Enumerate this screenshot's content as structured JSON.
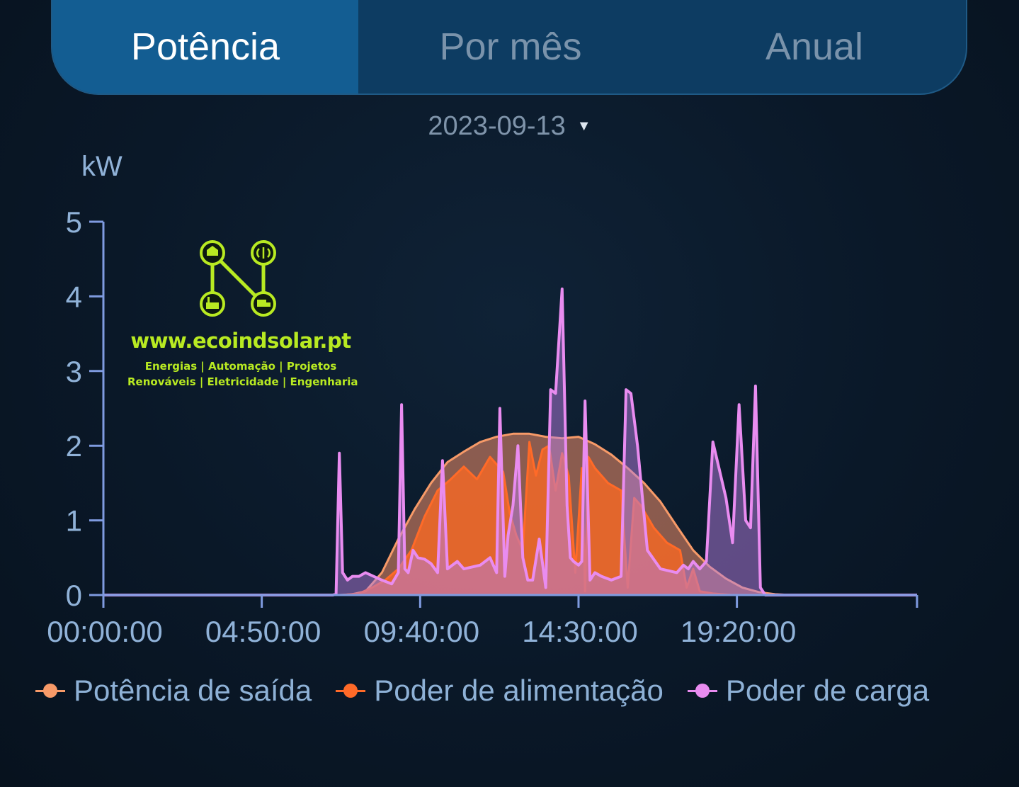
{
  "tabs": [
    {
      "label": "Potência",
      "active": true
    },
    {
      "label": "Por mês",
      "active": false
    },
    {
      "label": "Anual",
      "active": false
    }
  ],
  "date_picker": {
    "value": "2023-09-13"
  },
  "watermark": {
    "url": "www.ecoindsolar.pt",
    "line1": "Energias  |  Automação  |  Projetos",
    "line2": "Renováveis  |  Eletricidade  |  Engenharia"
  },
  "colors": {
    "axis": "#7f9be0",
    "tick_label": "#90b2d8",
    "output": "#f79a68",
    "feed": "#ff6a28",
    "load": "#e98cf0"
  },
  "chart_data": {
    "type": "area",
    "ylabel": "kW",
    "ylim": [
      0,
      5
    ],
    "yticks": [
      0,
      1,
      2,
      3,
      4,
      5
    ],
    "x_unit": "hours since 00:00",
    "xlim": [
      0,
      24.83
    ],
    "xticks": [
      {
        "value": 0,
        "label": "00:00:00"
      },
      {
        "value": 4.833,
        "label": "04:50:00"
      },
      {
        "value": 9.667,
        "label": "09:40:00"
      },
      {
        "value": 14.5,
        "label": "14:30:00"
      },
      {
        "value": 19.333,
        "label": "19:20:00"
      }
    ],
    "legend_position": "bottom",
    "grid": false,
    "series": [
      {
        "name": "Potência de saída",
        "x": [
          0,
          7.2,
          7.6,
          8.0,
          8.5,
          9.0,
          9.5,
          10.0,
          10.5,
          11.0,
          11.5,
          12.0,
          12.5,
          13.0,
          13.5,
          14.0,
          14.5,
          15.0,
          15.5,
          16.0,
          16.5,
          17.0,
          17.5,
          18.0,
          18.5,
          19.0,
          19.5,
          20.0,
          20.5,
          21.0,
          24.83
        ],
        "values": [
          0,
          0,
          0.01,
          0.05,
          0.3,
          0.75,
          1.15,
          1.5,
          1.78,
          1.92,
          2.05,
          2.12,
          2.16,
          2.16,
          2.12,
          2.1,
          2.12,
          2.02,
          1.88,
          1.7,
          1.5,
          1.25,
          0.92,
          0.6,
          0.38,
          0.22,
          0.1,
          0.04,
          0.01,
          0,
          0
        ]
      },
      {
        "name": "Poder de alimentação",
        "x": [
          0,
          7.3,
          7.8,
          8.2,
          8.6,
          9.0,
          9.4,
          9.8,
          10.2,
          10.6,
          11.0,
          11.4,
          11.8,
          12.0,
          12.2,
          12.4,
          12.6,
          12.8,
          13.0,
          13.2,
          13.4,
          13.6,
          13.8,
          14.0,
          14.2,
          14.4,
          14.6,
          14.7,
          14.8,
          15.0,
          15.4,
          15.8,
          16.0,
          16.2,
          16.4,
          16.8,
          17.2,
          17.6,
          17.8,
          18.0,
          18.2,
          18.6,
          18.9,
          19.2,
          19.5,
          24.83
        ],
        "values": [
          0,
          0,
          0.02,
          0.1,
          0.2,
          0.35,
          0.6,
          1.05,
          1.4,
          1.55,
          1.72,
          1.55,
          1.85,
          1.75,
          1.65,
          1.1,
          0.8,
          0.6,
          2.05,
          1.6,
          1.95,
          2.0,
          1.4,
          1.9,
          1.6,
          0.3,
          1.7,
          0.05,
          1.85,
          1.7,
          1.5,
          1.4,
          0.1,
          1.3,
          1.2,
          0.9,
          0.7,
          0.6,
          0.1,
          0.35,
          0.05,
          0.02,
          0.01,
          0,
          0,
          0
        ]
      },
      {
        "name": "Poder de carga",
        "x": [
          0,
          7.0,
          7.1,
          7.2,
          7.3,
          7.45,
          7.6,
          7.8,
          8.0,
          8.5,
          8.8,
          9.0,
          9.1,
          9.2,
          9.3,
          9.45,
          9.6,
          9.8,
          10.0,
          10.2,
          10.35,
          10.5,
          10.65,
          10.8,
          11.0,
          11.5,
          11.8,
          12.0,
          12.1,
          12.25,
          12.35,
          12.5,
          12.65,
          12.8,
          12.95,
          13.1,
          13.3,
          13.5,
          13.65,
          13.8,
          14.0,
          14.15,
          14.25,
          14.35,
          14.5,
          14.6,
          14.7,
          14.85,
          15.0,
          15.2,
          15.5,
          15.8,
          15.95,
          16.1,
          16.3,
          16.6,
          17.0,
          17.5,
          17.7,
          17.85,
          18.0,
          18.2,
          18.4,
          18.6,
          19.0,
          19.2,
          19.4,
          19.6,
          19.75,
          19.9,
          20.05,
          20.2,
          20.35,
          20.5,
          20.65,
          20.8,
          20.95,
          21.05,
          21.1,
          24.83
        ],
        "values": [
          0,
          0,
          0.01,
          1.9,
          0.3,
          0.2,
          0.25,
          0.25,
          0.3,
          0.2,
          0.15,
          0.3,
          2.55,
          0.35,
          0.3,
          0.6,
          0.5,
          0.48,
          0.42,
          0.3,
          1.8,
          0.35,
          0.4,
          0.45,
          0.35,
          0.4,
          0.5,
          0.3,
          2.5,
          0.25,
          0.8,
          1.2,
          2.0,
          0.5,
          0.2,
          0.2,
          0.75,
          0.1,
          2.75,
          2.7,
          4.1,
          1.2,
          0.5,
          0.45,
          0.4,
          0.45,
          2.6,
          0.2,
          0.3,
          0.25,
          0.2,
          0.25,
          2.75,
          2.7,
          2.0,
          0.6,
          0.35,
          0.3,
          0.4,
          0.35,
          0.45,
          0.35,
          0.45,
          2.05,
          1.3,
          0.7,
          2.55,
          1.0,
          0.9,
          2.8,
          0.1,
          0,
          0,
          0,
          0,
          0,
          0,
          0,
          0,
          0
        ]
      }
    ]
  }
}
